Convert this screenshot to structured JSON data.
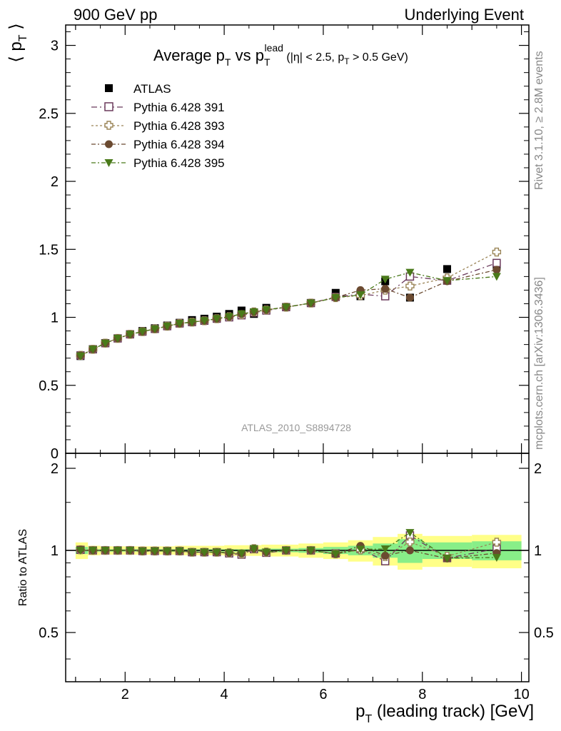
{
  "header": {
    "left": "900 GeV pp",
    "right": "Underlying Event"
  },
  "chart_data": [
    {
      "type": "scatter",
      "title_parts": {
        "main": "Average p",
        "sub1": "T",
        "vs": " vs p",
        "sub2": "T",
        "sup2": "lead",
        "cut": " (|η| < 2.5, p",
        "cut_sub": "T",
        "cut_end": " > 0.5 GeV)"
      },
      "ylabel": "⟨ p",
      "ylabel_sub": "T",
      "ylabel_end": " ⟩",
      "ylim": [
        0,
        3.15
      ],
      "xlim": [
        0.8,
        10.15
      ],
      "yticks": [
        "0",
        "0.5",
        "1",
        "1.5",
        "2",
        "2.5",
        "3"
      ],
      "ytick_values": [
        0,
        0.5,
        1,
        1.5,
        2,
        2.5,
        3
      ],
      "analysis_label": "ATLAS_2010_S8894728",
      "legend_position": "top-left",
      "series": [
        {
          "name": "ATLAS",
          "color": "#000000",
          "marker": "filled-square",
          "x": [
            1.1,
            1.35,
            1.6,
            1.85,
            2.1,
            2.35,
            2.6,
            2.85,
            3.1,
            3.35,
            3.6,
            3.85,
            4.1,
            4.35,
            4.6,
            4.85,
            5.25,
            5.75,
            6.25,
            6.75,
            7.25,
            7.75,
            8.5,
            9.5
          ],
          "y": [
            0.715,
            0.765,
            0.81,
            0.845,
            0.875,
            0.9,
            0.92,
            0.94,
            0.96,
            0.98,
            0.99,
            1.005,
            1.025,
            1.05,
            1.025,
            1.07,
            1.075,
            1.105,
            1.18,
            1.155,
            1.265,
            1.145,
            1.355,
            1.38
          ]
        },
        {
          "name": "Pythia 6.428 391",
          "color": "#6b3a5c",
          "marker": "open-square",
          "dash": "8 4 2 4",
          "x": [
            1.1,
            1.35,
            1.6,
            1.85,
            2.1,
            2.35,
            2.6,
            2.85,
            3.1,
            3.35,
            3.6,
            3.85,
            4.1,
            4.35,
            4.6,
            4.85,
            5.25,
            5.75,
            6.25,
            6.75,
            7.25,
            7.75,
            8.5,
            9.5
          ],
          "y": [
            0.72,
            0.765,
            0.81,
            0.845,
            0.875,
            0.895,
            0.915,
            0.935,
            0.955,
            0.965,
            0.975,
            0.99,
            1.0,
            1.015,
            1.035,
            1.05,
            1.075,
            1.105,
            1.15,
            1.17,
            1.155,
            1.3,
            1.27,
            1.4
          ]
        },
        {
          "name": "Pythia 6.428 393",
          "color": "#9a8456",
          "marker": "open-cross",
          "dash": "3 3",
          "x": [
            1.1,
            1.35,
            1.6,
            1.85,
            2.1,
            2.35,
            2.6,
            2.85,
            3.1,
            3.35,
            3.6,
            3.85,
            4.1,
            4.35,
            4.6,
            4.85,
            5.25,
            5.75,
            6.25,
            6.75,
            7.25,
            7.75,
            8.5,
            9.5
          ],
          "y": [
            0.72,
            0.765,
            0.81,
            0.845,
            0.875,
            0.895,
            0.915,
            0.935,
            0.955,
            0.965,
            0.975,
            0.99,
            1.005,
            1.02,
            1.04,
            1.055,
            1.075,
            1.105,
            1.145,
            1.16,
            1.2,
            1.23,
            1.29,
            1.48
          ]
        },
        {
          "name": "Pythia 6.428 394",
          "color": "#6b4a30",
          "marker": "filled-circle",
          "dash": "6 3 2 3",
          "x": [
            1.1,
            1.35,
            1.6,
            1.85,
            2.1,
            2.35,
            2.6,
            2.85,
            3.1,
            3.35,
            3.6,
            3.85,
            4.1,
            4.35,
            4.6,
            4.85,
            5.25,
            5.75,
            6.25,
            6.75,
            7.25,
            7.75,
            8.5,
            9.5
          ],
          "y": [
            0.72,
            0.765,
            0.81,
            0.845,
            0.875,
            0.895,
            0.915,
            0.935,
            0.955,
            0.965,
            0.975,
            0.99,
            1.005,
            1.025,
            1.04,
            1.055,
            1.075,
            1.105,
            1.145,
            1.2,
            1.21,
            1.145,
            1.265,
            1.35
          ]
        },
        {
          "name": "Pythia 6.428 395",
          "color": "#4a7a1a",
          "marker": "filled-triangle-down",
          "dash": "6 3 2 3",
          "x": [
            1.1,
            1.35,
            1.6,
            1.85,
            2.1,
            2.35,
            2.6,
            2.85,
            3.1,
            3.35,
            3.6,
            3.85,
            4.1,
            4.35,
            4.6,
            4.85,
            5.25,
            5.75,
            6.25,
            6.75,
            7.25,
            7.75,
            8.5,
            9.5
          ],
          "y": [
            0.715,
            0.765,
            0.81,
            0.845,
            0.875,
            0.895,
            0.915,
            0.935,
            0.955,
            0.965,
            0.975,
            0.99,
            1.005,
            1.025,
            1.04,
            1.055,
            1.075,
            1.105,
            1.145,
            1.165,
            1.28,
            1.33,
            1.27,
            1.3
          ]
        }
      ]
    },
    {
      "type": "scatter",
      "ylabel": "Ratio to ATLAS",
      "xlabel": "p",
      "xlabel_sub": "T",
      "xlabel_end": " (leading track) [GeV]",
      "xlim": [
        0.8,
        10.15
      ],
      "ylim": [
        0.33,
        2.27
      ],
      "xticks": [
        "2",
        "4",
        "6",
        "8",
        "10"
      ],
      "xtick_values": [
        2,
        4,
        6,
        8,
        10
      ],
      "yticks": [
        "0.5",
        "1",
        "2"
      ],
      "ytick_values": [
        0.5,
        1,
        2
      ],
      "bands": {
        "x_edges": [
          1.0,
          1.25,
          1.5,
          1.75,
          2.0,
          2.25,
          2.5,
          2.75,
          3.0,
          3.25,
          3.5,
          3.75,
          4.0,
          4.25,
          4.5,
          4.75,
          5.0,
          5.5,
          6.0,
          6.5,
          7.0,
          7.5,
          8.0,
          9.0,
          10.0
        ],
        "stat_halfwidth": [
          0.03,
          0.01,
          0.01,
          0.01,
          0.01,
          0.01,
          0.01,
          0.01,
          0.01,
          0.01,
          0.01,
          0.01,
          0.01,
          0.01,
          0.01,
          0.015,
          0.015,
          0.02,
          0.03,
          0.04,
          0.06,
          0.1,
          0.07,
          0.08
        ],
        "total_halfwidth": [
          0.07,
          0.04,
          0.035,
          0.035,
          0.035,
          0.035,
          0.035,
          0.035,
          0.04,
          0.04,
          0.04,
          0.04,
          0.045,
          0.045,
          0.045,
          0.05,
          0.05,
          0.06,
          0.07,
          0.09,
          0.12,
          0.15,
          0.13,
          0.14
        ],
        "stat_color": "#88ee88",
        "total_color": "#ffff88"
      },
      "series": [
        {
          "name": "Pythia 6.428 391",
          "y": [
            1.005,
            1.0,
            1.0,
            1.0,
            1.0,
            0.995,
            0.995,
            0.995,
            0.995,
            0.985,
            0.985,
            0.985,
            0.975,
            0.965,
            1.01,
            0.98,
            1.0,
            1.0,
            0.975,
            1.013,
            0.913,
            1.135,
            0.937,
            1.015
          ]
        },
        {
          "name": "Pythia 6.428 393",
          "y": [
            1.005,
            1.0,
            1.0,
            1.0,
            1.0,
            0.995,
            0.995,
            0.995,
            0.995,
            0.985,
            0.985,
            0.985,
            0.98,
            0.971,
            1.015,
            0.986,
            1.0,
            1.0,
            0.971,
            1.004,
            0.949,
            1.074,
            0.952,
            1.072
          ]
        },
        {
          "name": "Pythia 6.428 394",
          "y": [
            1.007,
            1.0,
            1.0,
            1.0,
            1.0,
            0.994,
            0.995,
            0.995,
            0.995,
            0.985,
            0.985,
            0.985,
            0.98,
            0.976,
            1.015,
            0.986,
            1.0,
            1.0,
            0.971,
            1.039,
            0.957,
            1.0,
            0.934,
            0.978
          ]
        },
        {
          "name": "Pythia 6.428 395",
          "y": [
            1.0,
            1.0,
            1.0,
            1.0,
            1.0,
            0.994,
            0.995,
            0.995,
            0.995,
            0.985,
            0.985,
            0.985,
            0.98,
            0.976,
            1.015,
            0.986,
            1.0,
            1.0,
            0.971,
            1.009,
            1.012,
            1.162,
            0.937,
            0.942
          ]
        }
      ]
    }
  ],
  "side_notes": {
    "rivet": "Rivet 3.1.10, ≥ 2.8M events",
    "mcplots": "mcplots.cern.ch [arXiv:1306.3436]"
  }
}
